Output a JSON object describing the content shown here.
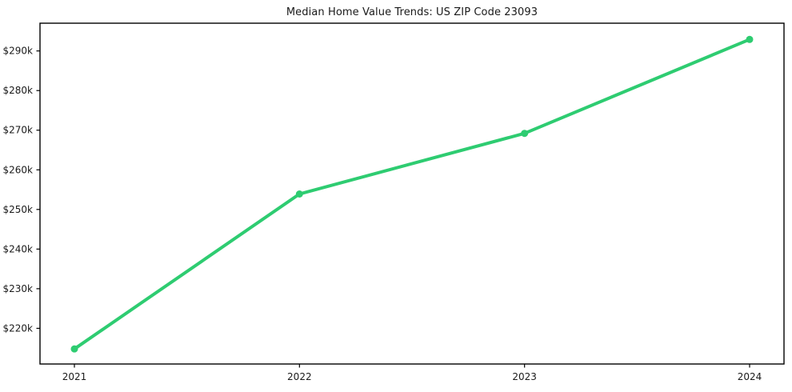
{
  "chart_data": {
    "type": "line",
    "title": "Median Home Value Trends: US ZIP Code 23093",
    "xlabel": "",
    "ylabel": "",
    "x": [
      2021,
      2022,
      2023,
      2024
    ],
    "x_tick_labels": [
      "2021",
      "2022",
      "2023",
      "2024"
    ],
    "series": [
      {
        "name": "Median Home Value",
        "values": [
          214800,
          253900,
          269200,
          292900
        ],
        "color": "#2ecc71",
        "marker": "circle",
        "line_width": 4
      }
    ],
    "y_ticks": [
      {
        "value": 220000,
        "label": "$220k"
      },
      {
        "value": 230000,
        "label": "$230k"
      },
      {
        "value": 240000,
        "label": "$240k"
      },
      {
        "value": 250000,
        "label": "$250k"
      },
      {
        "value": 260000,
        "label": "$260k"
      },
      {
        "value": 270000,
        "label": "$270k"
      },
      {
        "value": 280000,
        "label": "$280k"
      },
      {
        "value": 290000,
        "label": "$290k"
      }
    ],
    "ylim": [
      211000,
      297000
    ],
    "grid": false,
    "legend_position": "none",
    "axis_color": "#000000",
    "text_color": "#1a1a1a",
    "background_color": "#ffffff"
  }
}
